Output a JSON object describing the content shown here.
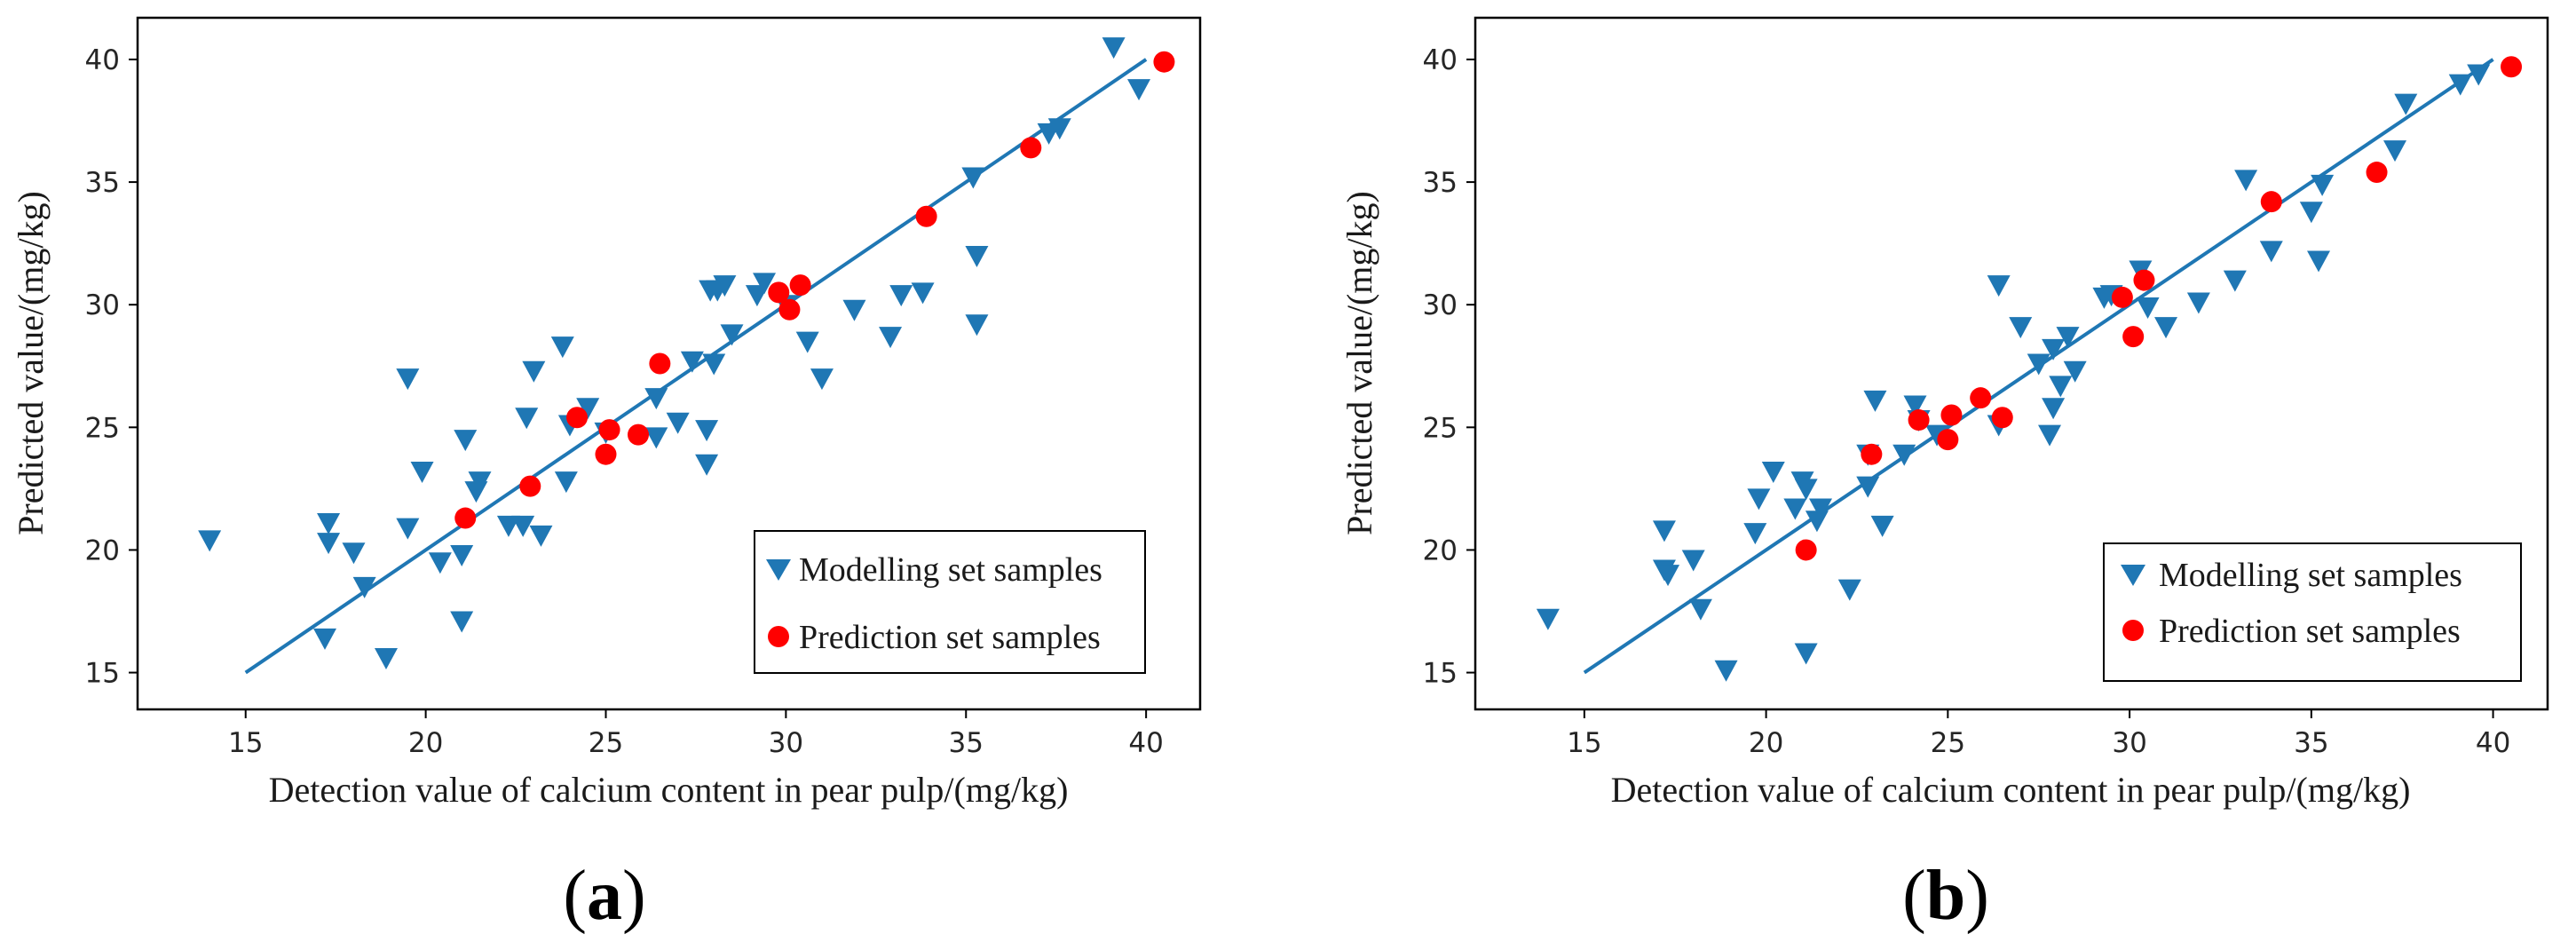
{
  "colors": {
    "modelling": "#1f77b4",
    "prediction": "#ff0000",
    "fit_line": "#1f77b4",
    "axis": "#000000"
  },
  "chart_data": [
    {
      "id": "a",
      "type": "scatter",
      "panel_label": "a",
      "xlabel": "Detection value of calcium content in pear pulp/(mg/kg)",
      "ylabel": "Predicted value/(mg/kg)",
      "xlim": [
        12,
        41.5
      ],
      "ylim": [
        13.5,
        41.7
      ],
      "xticks": [
        15,
        20,
        25,
        30,
        35,
        40
      ],
      "yticks": [
        15,
        20,
        25,
        30,
        35,
        40
      ],
      "legend_position": "bottom-right",
      "fit_line": {
        "x": [
          15,
          40
        ],
        "y": [
          15,
          40
        ]
      },
      "series": [
        {
          "name": "Modelling set samples",
          "marker": "triangle-down",
          "points": [
            [
              14.0,
              20.4
            ],
            [
              17.2,
              16.4
            ],
            [
              17.3,
              20.3
            ],
            [
              17.3,
              21.1
            ],
            [
              18.0,
              19.9
            ],
            [
              18.3,
              18.5
            ],
            [
              18.9,
              15.6
            ],
            [
              19.5,
              20.9
            ],
            [
              19.5,
              27.0
            ],
            [
              19.9,
              23.2
            ],
            [
              20.4,
              19.5
            ],
            [
              21.0,
              19.8
            ],
            [
              21.0,
              17.1
            ],
            [
              21.1,
              24.5
            ],
            [
              21.4,
              22.4
            ],
            [
              21.5,
              22.8
            ],
            [
              22.3,
              21.0
            ],
            [
              22.7,
              21.0
            ],
            [
              22.8,
              25.4
            ],
            [
              23.0,
              27.3
            ],
            [
              23.2,
              20.6
            ],
            [
              23.8,
              28.3
            ],
            [
              23.9,
              22.8
            ],
            [
              24.0,
              25.1
            ],
            [
              24.5,
              25.8
            ],
            [
              25.0,
              24.8
            ],
            [
              26.4,
              24.6
            ],
            [
              26.4,
              26.2
            ],
            [
              27.0,
              25.2
            ],
            [
              27.4,
              27.7
            ],
            [
              27.8,
              23.5
            ],
            [
              27.8,
              24.9
            ],
            [
              27.9,
              30.6
            ],
            [
              28.0,
              27.6
            ],
            [
              28.1,
              30.6
            ],
            [
              28.3,
              30.8
            ],
            [
              28.5,
              28.8
            ],
            [
              29.2,
              30.4
            ],
            [
              29.4,
              30.9
            ],
            [
              30.0,
              30.0
            ],
            [
              30.6,
              28.5
            ],
            [
              31.0,
              27.0
            ],
            [
              31.9,
              29.8
            ],
            [
              32.9,
              28.7
            ],
            [
              33.2,
              30.4
            ],
            [
              33.8,
              30.5
            ],
            [
              35.2,
              35.2
            ],
            [
              35.3,
              29.2
            ],
            [
              35.3,
              32.0
            ],
            [
              37.3,
              37.0
            ],
            [
              37.6,
              37.2
            ],
            [
              39.1,
              40.5
            ],
            [
              39.8,
              38.8
            ]
          ]
        },
        {
          "name": "Prediction set samples",
          "marker": "circle",
          "points": [
            [
              21.1,
              21.3
            ],
            [
              22.9,
              22.6
            ],
            [
              24.2,
              25.4
            ],
            [
              25.0,
              23.9
            ],
            [
              25.1,
              24.9
            ],
            [
              25.9,
              24.7
            ],
            [
              26.5,
              27.6
            ],
            [
              29.8,
              30.5
            ],
            [
              30.1,
              29.8
            ],
            [
              30.4,
              30.8
            ],
            [
              33.9,
              33.6
            ],
            [
              36.8,
              36.4
            ],
            [
              40.5,
              39.9
            ]
          ]
        }
      ]
    },
    {
      "id": "b",
      "type": "scatter",
      "panel_label": "b",
      "xlabel": "Detection value of calcium content in pear pulp/(mg/kg)",
      "ylabel": "Predicted value/(mg/kg)",
      "xlim": [
        12,
        41.5
      ],
      "ylim": [
        13.5,
        41.7
      ],
      "xticks": [
        15,
        20,
        25,
        30,
        35,
        40
      ],
      "yticks": [
        15,
        20,
        25,
        30,
        35,
        40
      ],
      "legend_position": "bottom-right",
      "fit_line": {
        "x": [
          15,
          40
        ],
        "y": [
          15,
          40
        ]
      },
      "series": [
        {
          "name": "Modelling set samples",
          "marker": "triangle-down",
          "points": [
            [
              14.0,
              17.2
            ],
            [
              17.2,
              20.8
            ],
            [
              17.2,
              19.2
            ],
            [
              17.3,
              19.0
            ],
            [
              18.0,
              19.6
            ],
            [
              18.2,
              17.6
            ],
            [
              18.9,
              15.1
            ],
            [
              19.7,
              20.7
            ],
            [
              19.8,
              22.1
            ],
            [
              20.2,
              23.2
            ],
            [
              20.8,
              21.7
            ],
            [
              21.0,
              22.8
            ],
            [
              21.1,
              22.5
            ],
            [
              21.1,
              15.8
            ],
            [
              21.4,
              21.2
            ],
            [
              21.5,
              21.7
            ],
            [
              22.3,
              18.4
            ],
            [
              22.8,
              22.6
            ],
            [
              22.8,
              23.9
            ],
            [
              23.0,
              26.1
            ],
            [
              23.2,
              21.0
            ],
            [
              23.8,
              23.9
            ],
            [
              24.1,
              25.9
            ],
            [
              24.2,
              25.3
            ],
            [
              24.7,
              24.7
            ],
            [
              26.4,
              30.8
            ],
            [
              26.4,
              25.1
            ],
            [
              27.0,
              29.1
            ],
            [
              27.5,
              27.6
            ],
            [
              27.8,
              24.7
            ],
            [
              27.9,
              28.2
            ],
            [
              27.9,
              25.8
            ],
            [
              28.1,
              26.7
            ],
            [
              28.3,
              28.7
            ],
            [
              28.5,
              27.3
            ],
            [
              29.3,
              30.3
            ],
            [
              29.5,
              30.4
            ],
            [
              30.3,
              31.4
            ],
            [
              30.5,
              29.9
            ],
            [
              31.0,
              29.1
            ],
            [
              31.9,
              30.1
            ],
            [
              32.9,
              31.0
            ],
            [
              33.2,
              35.1
            ],
            [
              33.9,
              32.2
            ],
            [
              35.0,
              33.8
            ],
            [
              35.2,
              31.8
            ],
            [
              35.3,
              34.9
            ],
            [
              37.3,
              36.3
            ],
            [
              37.6,
              38.2
            ],
            [
              39.1,
              39.0
            ],
            [
              39.6,
              39.4
            ]
          ]
        },
        {
          "name": "Prediction set samples",
          "marker": "circle",
          "points": [
            [
              21.1,
              20.0
            ],
            [
              22.9,
              23.9
            ],
            [
              24.2,
              25.3
            ],
            [
              25.0,
              24.5
            ],
            [
              25.1,
              25.5
            ],
            [
              25.9,
              26.2
            ],
            [
              26.5,
              25.4
            ],
            [
              29.8,
              30.3
            ],
            [
              30.1,
              28.7
            ],
            [
              30.4,
              31.0
            ],
            [
              33.9,
              34.2
            ],
            [
              36.8,
              35.4
            ],
            [
              40.5,
              39.7
            ]
          ]
        }
      ]
    }
  ]
}
